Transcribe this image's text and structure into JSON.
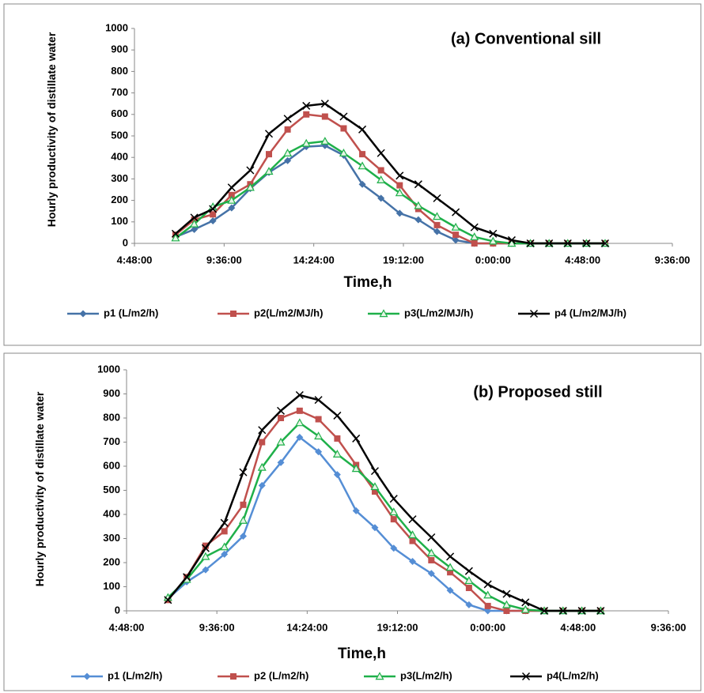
{
  "chart_data": [
    {
      "type": "line",
      "title": "(a) Conventional sill",
      "xlabel": "Time,h",
      "ylabel": "Hourly productivity of distillate water",
      "x": [
        7,
        8,
        9,
        10,
        11,
        12,
        13,
        14,
        15,
        16,
        17,
        18,
        19,
        20,
        21,
        22,
        23,
        24,
        25,
        26,
        27,
        28,
        29,
        30
      ],
      "xlim": [
        4.8,
        33.6
      ],
      "xticks": [
        {
          "value": 4.8,
          "label": "4:48:00"
        },
        {
          "value": 9.6,
          "label": "9:36:00"
        },
        {
          "value": 14.4,
          "label": "14:24:00"
        },
        {
          "value": 19.2,
          "label": "19:12:00"
        },
        {
          "value": 24,
          "label": "0:00:00"
        },
        {
          "value": 28.8,
          "label": "4:48:00"
        },
        {
          "value": 33.6,
          "label": "9:36:00"
        }
      ],
      "ylim": [
        0,
        1000
      ],
      "yticks": [
        0,
        100,
        200,
        300,
        400,
        500,
        600,
        700,
        800,
        900,
        1000
      ],
      "legend": "bottom",
      "grid": false,
      "series": [
        {
          "name": "p1 (L/m2/h)",
          "color": "#4572a7",
          "marker": "diamond",
          "values": [
            30,
            65,
            105,
            165,
            255,
            330,
            385,
            450,
            455,
            410,
            275,
            210,
            140,
            110,
            55,
            15,
            0,
            0,
            0,
            0,
            0,
            0,
            0,
            0
          ]
        },
        {
          "name": "p2(L/m2/MJ/h)",
          "color": "#c0504d",
          "marker": "square",
          "values": [
            40,
            110,
            135,
            225,
            275,
            415,
            530,
            600,
            590,
            535,
            415,
            340,
            270,
            160,
            85,
            40,
            0,
            0,
            0,
            0,
            0,
            0,
            0,
            0
          ]
        },
        {
          "name": "p3(L/m2/MJ/h)",
          "color": "#1fb04a",
          "marker": "triangle",
          "values": [
            25,
            90,
            170,
            200,
            260,
            335,
            420,
            465,
            475,
            420,
            360,
            295,
            235,
            175,
            125,
            75,
            30,
            10,
            0,
            0,
            0,
            0,
            0,
            0
          ]
        },
        {
          "name": "p4 (L/m2/MJ/h)",
          "color": "#000000",
          "marker": "x",
          "values": [
            45,
            120,
            160,
            260,
            340,
            510,
            580,
            640,
            650,
            590,
            530,
            420,
            315,
            275,
            210,
            145,
            75,
            45,
            15,
            0,
            0,
            0,
            0,
            0
          ]
        }
      ]
    },
    {
      "type": "line",
      "title": "(b) Proposed still",
      "xlabel": "Time,h",
      "ylabel": "Hourly productivity of distillate water",
      "x": [
        7,
        8,
        9,
        10,
        11,
        12,
        13,
        14,
        15,
        16,
        17,
        18,
        19,
        20,
        21,
        22,
        23,
        24,
        25,
        26,
        27,
        28,
        29,
        30
      ],
      "xlim": [
        4.8,
        33.6
      ],
      "xticks": [
        {
          "value": 4.8,
          "label": "4:48:00"
        },
        {
          "value": 9.6,
          "label": "9:36:00"
        },
        {
          "value": 14.4,
          "label": "14:24:00"
        },
        {
          "value": 19.2,
          "label": "19:12:00"
        },
        {
          "value": 24,
          "label": "0:00:00"
        },
        {
          "value": 28.8,
          "label": "4:48:00"
        },
        {
          "value": 33.6,
          "label": "9:36:00"
        }
      ],
      "ylim": [
        0,
        1000
      ],
      "yticks": [
        0,
        100,
        200,
        300,
        400,
        500,
        600,
        700,
        800,
        900,
        1000
      ],
      "legend": "bottom",
      "grid": false,
      "series": [
        {
          "name": "p1 (L/m2/h)",
          "color": "#558ed5",
          "marker": "diamond",
          "values": [
            50,
            120,
            170,
            235,
            310,
            520,
            615,
            720,
            660,
            565,
            415,
            345,
            260,
            205,
            155,
            85,
            25,
            0,
            0,
            0,
            0,
            0,
            0,
            0
          ]
        },
        {
          "name": "p2 (L/m2/h)",
          "color": "#c0504d",
          "marker": "square",
          "values": [
            45,
            140,
            270,
            330,
            440,
            700,
            800,
            830,
            795,
            715,
            605,
            495,
            380,
            290,
            210,
            160,
            95,
            20,
            0,
            0,
            0,
            0,
            0,
            0
          ]
        },
        {
          "name": "p3(L/m2/h)",
          "color": "#1fb04a",
          "marker": "triangle",
          "values": [
            55,
            130,
            225,
            265,
            375,
            595,
            700,
            780,
            725,
            650,
            590,
            515,
            410,
            315,
            240,
            180,
            125,
            65,
            25,
            5,
            0,
            0,
            0,
            0
          ]
        },
        {
          "name": "p4(L/m2/h)",
          "color": "#000000",
          "marker": "x",
          "values": [
            45,
            140,
            260,
            365,
            575,
            750,
            830,
            895,
            875,
            810,
            715,
            580,
            465,
            380,
            305,
            225,
            165,
            110,
            70,
            35,
            0,
            0,
            0,
            0
          ]
        }
      ]
    }
  ]
}
